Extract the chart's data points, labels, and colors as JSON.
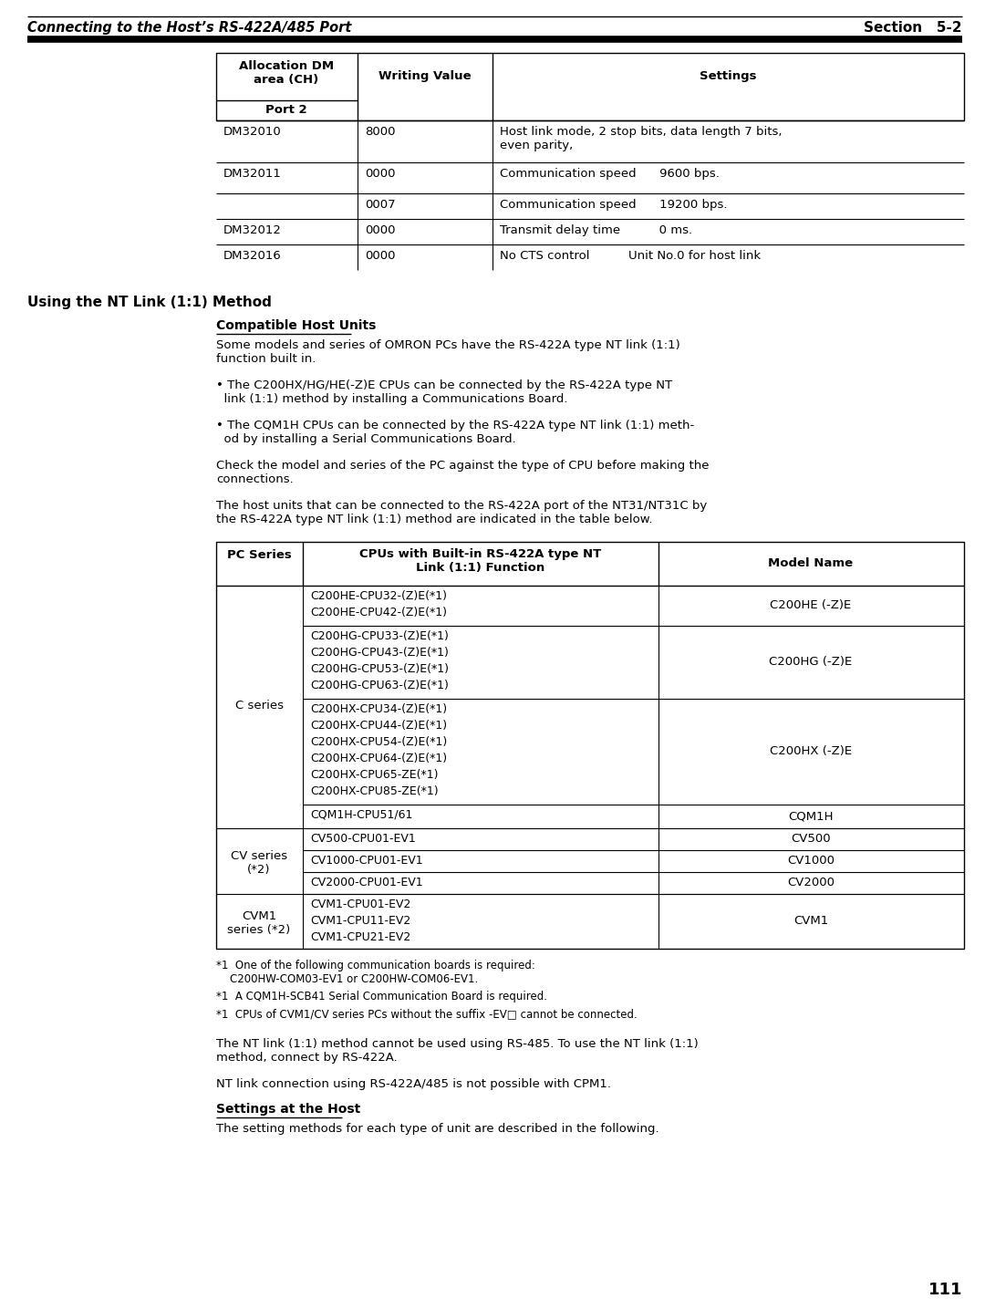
{
  "header_italic": "Connecting to the Host’s RS-422A/485 Port",
  "header_section": "Section   5-2",
  "page_number": "111",
  "top_table_rows": [
    [
      "DM32010",
      "8000",
      "Host link mode, 2 stop bits, data length 7 bits,\neven parity,"
    ],
    [
      "DM32011",
      "0000",
      "Communication speed      9600 bps."
    ],
    [
      "",
      "0007",
      "Communication speed      19200 bps."
    ],
    [
      "DM32012",
      "0000",
      "Transmit delay time          0 ms."
    ],
    [
      "DM32016",
      "0000",
      "No CTS control          Unit No.0 for host link"
    ]
  ],
  "section_heading": "Using the NT Link (1:1) Method",
  "subsection_heading": "Compatible Host Units",
  "para1": "Some models and series of OMRON PCs have the RS-422A type NT link (1:1)\nfunction built in.",
  "bullet1": "• The C200HX/HG/HE(-Z)E CPUs can be connected by the RS-422A type NT\n  link (1:1) method by installing a Communications Board.",
  "bullet2": "• The CQM1H CPUs can be connected by the RS-422A type NT link (1:1) meth-\n  od by installing a Serial Communications Board.",
  "para2": "Check the model and series of the PC against the type of CPU before making the\nconnections.",
  "para3": "The host units that can be connected to the RS-422A port of the NT31/NT31C by\nthe RS-422A type NT link (1:1) method are indicated in the table below.",
  "bt_hdr": [
    "PC Series",
    "CPUs with Built-in RS-422A type NT\nLink (1:1) Function",
    "Model Name"
  ],
  "footnote1": "*1  One of the following communication boards is required:\n    C200HW-COM03-EV1 or C200HW-COM06-EV1.",
  "footnote2": "*1  A CQM1H-SCB41 Serial Communication Board is required.",
  "footnote3": "*1  CPUs of CVM1/CV series PCs without the suffix -EV□ cannot be connected.",
  "footer1": "The NT link (1:1) method cannot be used using RS-485. To use the NT link (1:1)\nmethod, connect by RS-422A.",
  "footer2": "NT link connection using RS-422A/485 is not possible with CPM1.",
  "footer3": "Settings at the Host",
  "footer4": "The setting methods for each type of unit are described in the following."
}
